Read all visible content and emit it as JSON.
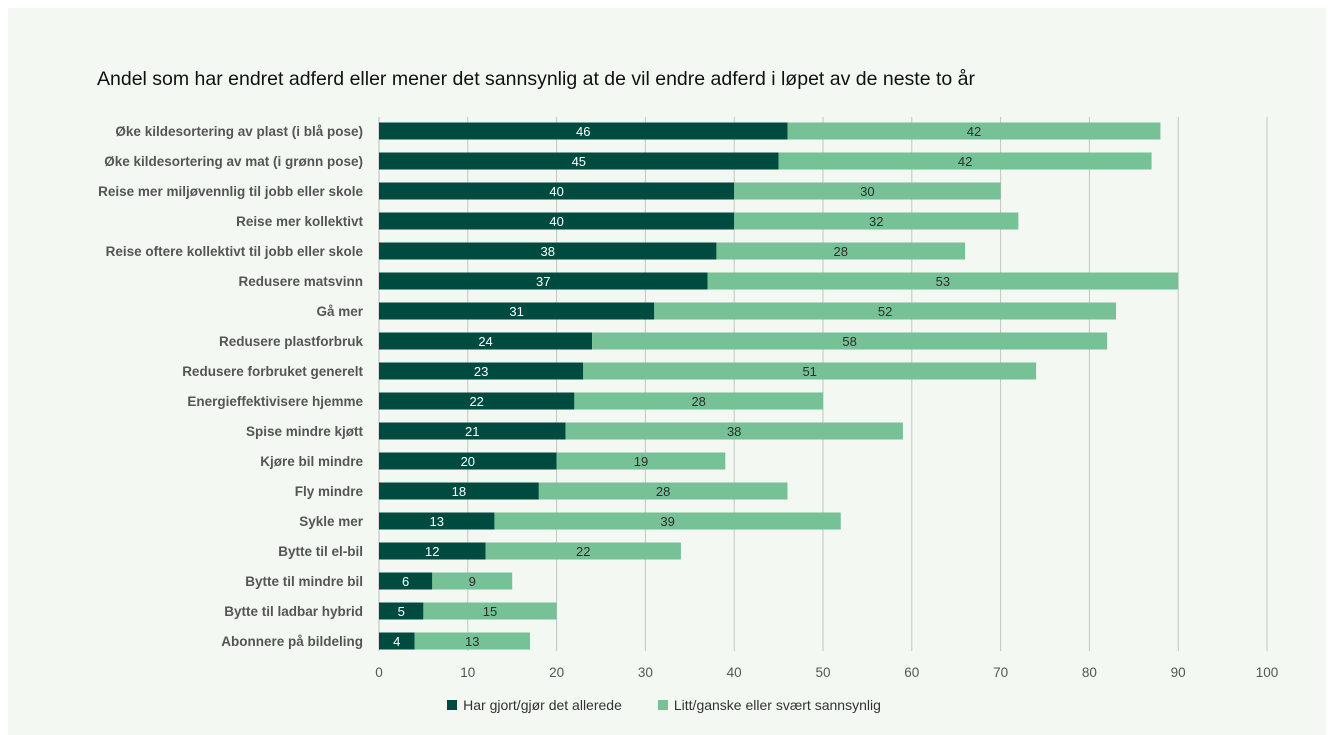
{
  "chart_data": {
    "type": "bar",
    "orientation": "horizontal",
    "stacked": true,
    "title": "Andel som har endret adferd eller mener det sannsynlig at de vil endre adferd i løpet av de neste to år",
    "categories": [
      "Øke kildesortering av plast (i blå pose)",
      "Øke kildesortering av mat (i grønn pose)",
      "Reise mer miljøvennlig til jobb eller skole",
      "Reise mer kollektivt",
      "Reise oftere kollektivt til jobb eller skole",
      "Redusere matsvinn",
      "Gå mer",
      "Redusere plastforbruk",
      "Redusere forbruket generelt",
      "Energieffektivisere hjemme",
      "Spise mindre kjøtt",
      "Kjøre bil mindre",
      "Fly mindre",
      "Sykle mer",
      "Bytte til el-bil",
      "Bytte til mindre bil",
      "Bytte til ladbar hybrid",
      "Abonnere på bildeling"
    ],
    "series": [
      {
        "name": "Har gjort/gjør det allerede",
        "color": "#004b3f",
        "values": [
          46,
          45,
          40,
          40,
          38,
          37,
          31,
          24,
          23,
          22,
          21,
          20,
          18,
          13,
          12,
          6,
          5,
          4
        ]
      },
      {
        "name": "Litt/ganske eller svært sannsynlig",
        "color": "#76c196",
        "values": [
          42,
          42,
          30,
          32,
          28,
          53,
          52,
          58,
          51,
          28,
          38,
          19,
          28,
          39,
          22,
          9,
          15,
          13
        ]
      }
    ],
    "xlim": [
      0,
      100
    ],
    "xticks": [
      0,
      10,
      20,
      30,
      40,
      50,
      60,
      70,
      80,
      90,
      100
    ],
    "grid": true,
    "legend_position": "bottom",
    "gridline_color": "#c4c4c4",
    "background_color": "#f3f8f3"
  }
}
